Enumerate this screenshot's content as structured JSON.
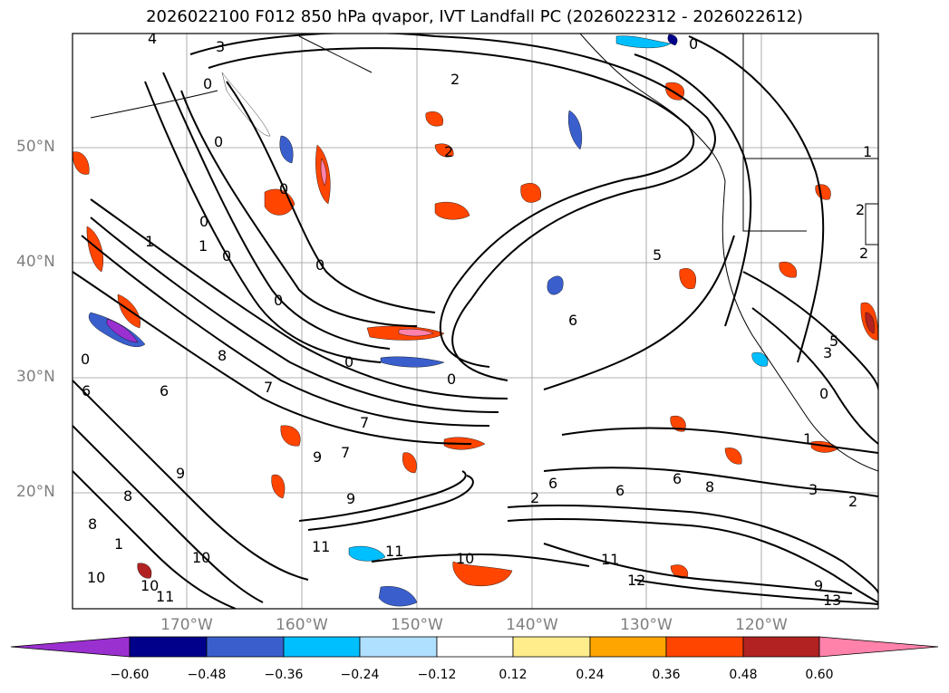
{
  "title": "2026022100 F012 850 hPa qvapor, IVT Landfall PC (2026022312 - 2026022612)",
  "lat_labels": [
    "50°N",
    "40°N",
    "30°N",
    "20°N"
  ],
  "lon_labels": [
    "170°W",
    "160°W",
    "150°W",
    "140°W",
    "130°W",
    "120°W"
  ],
  "colorbar": {
    "ticks": [
      "−0.60",
      "−0.48",
      "−0.36",
      "−0.24",
      "−0.12",
      "0.12",
      "0.24",
      "0.36",
      "0.48",
      "0.60"
    ],
    "colors": [
      "#9b30d0",
      "#00008b",
      "#3a5fcd",
      "#00bfff",
      "#b0e0ff",
      "#ffffff",
      "#ffec8b",
      "#ffa500",
      "#ff4500",
      "#b22222",
      "#ff82ab"
    ]
  },
  "contour_labels": [
    "4",
    "3",
    "0",
    "2",
    "0",
    "0",
    "0",
    "0",
    "2",
    "0",
    "1",
    "0",
    "2",
    "0",
    "1",
    "2",
    "1",
    "0",
    "0",
    "5",
    "6",
    "0",
    "0",
    "6",
    "6",
    "7",
    "7",
    "9",
    "8",
    "7",
    "9",
    "8",
    "6",
    "8",
    "9",
    "6",
    "6",
    "8",
    "10",
    "1",
    "11",
    "11",
    "10",
    "10",
    "11",
    "12",
    "10",
    "11",
    "1",
    "2",
    "3",
    "2",
    "5",
    "3",
    "9",
    "13"
  ]
}
